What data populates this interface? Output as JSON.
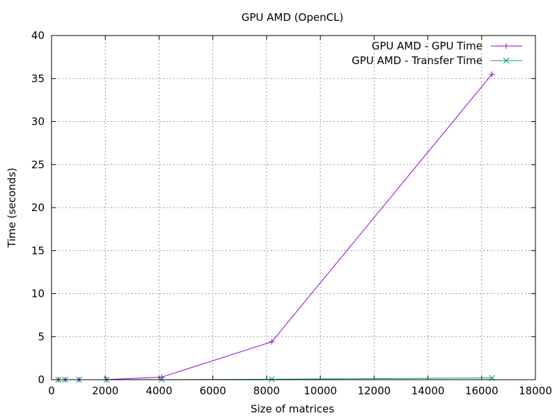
{
  "chart_data": {
    "type": "line",
    "title": "GPU AMD (OpenCL)",
    "xlabel": "Size of matrices",
    "ylabel": "Time (seconds)",
    "xlim": [
      0,
      18000
    ],
    "ylim": [
      0,
      40
    ],
    "xticks": [
      0,
      2000,
      4000,
      6000,
      8000,
      10000,
      12000,
      14000,
      16000,
      18000
    ],
    "yticks": [
      0,
      5,
      10,
      15,
      20,
      25,
      30,
      35,
      40
    ],
    "grid": true,
    "legend_position": "top-right",
    "series": [
      {
        "name": "GPU AMD - GPU Time",
        "color": "#9400d3",
        "marker": "plus",
        "x": [
          256,
          512,
          1024,
          2048,
          4096,
          8192,
          16384
        ],
        "y": [
          0,
          0,
          0,
          0.01,
          0.3,
          4.4,
          35.5
        ]
      },
      {
        "name": "GPU AMD - Transfer Time",
        "color": "#009e73",
        "marker": "cross",
        "x": [
          256,
          512,
          1024,
          2048,
          4096,
          8192,
          16384
        ],
        "y": [
          0,
          0,
          0,
          0,
          0.01,
          0.05,
          0.2
        ]
      }
    ]
  }
}
